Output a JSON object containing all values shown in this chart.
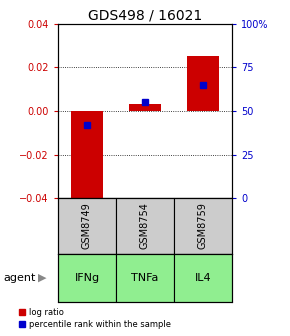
{
  "title": "GDS498 / 16021",
  "samples": [
    "GSM8749",
    "GSM8754",
    "GSM8759"
  ],
  "agents": [
    "IFNg",
    "TNFa",
    "IL4"
  ],
  "log_ratios": [
    -0.043,
    0.003,
    0.025
  ],
  "percentile_ranks": [
    0.42,
    0.55,
    0.65
  ],
  "ylim_left": [
    -0.04,
    0.04
  ],
  "ylim_right": [
    0.0,
    1.0
  ],
  "yticks_left": [
    -0.04,
    -0.02,
    0.0,
    0.02,
    0.04
  ],
  "yticks_right": [
    0.0,
    0.25,
    0.5,
    0.75,
    1.0
  ],
  "ytick_labels_right": [
    "0",
    "25",
    "50",
    "75",
    "100%"
  ],
  "bar_color": "#cc0000",
  "percentile_color": "#0000cc",
  "agent_bg_color": "#90ee90",
  "sample_bg_color": "#cccccc",
  "title_fontsize": 10,
  "tick_fontsize": 7,
  "label_fontsize": 8,
  "bar_width": 0.55
}
